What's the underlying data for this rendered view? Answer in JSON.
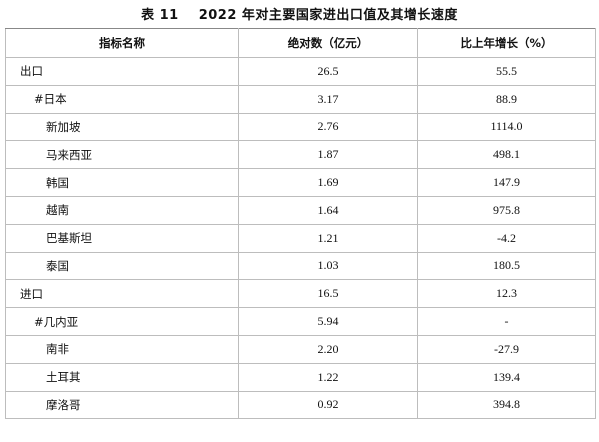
{
  "title": {
    "number": "表 11",
    "text": "2022 年对主要国家进出口值及其增长速度"
  },
  "table": {
    "headers": [
      "指标名称",
      "绝对数（亿元）",
      "比上年增长（%）"
    ],
    "rows": [
      {
        "name": "出口",
        "level": 0,
        "value": "26.5",
        "growth": "55.5"
      },
      {
        "name": "#日本",
        "level": 1,
        "value": "3.17",
        "growth": "88.9"
      },
      {
        "name": "新加坡",
        "level": 2,
        "value": "2.76",
        "growth": "1114.0"
      },
      {
        "name": "马来西亚",
        "level": 2,
        "value": "1.87",
        "growth": "498.1"
      },
      {
        "name": "韩国",
        "level": 2,
        "value": "1.69",
        "growth": "147.9"
      },
      {
        "name": "越南",
        "level": 2,
        "value": "1.64",
        "growth": "975.8"
      },
      {
        "name": "巴基斯坦",
        "level": 2,
        "value": "1.21",
        "growth": "-4.2"
      },
      {
        "name": "泰国",
        "level": 2,
        "value": "1.03",
        "growth": "180.5"
      },
      {
        "name": "进口",
        "level": 0,
        "value": "16.5",
        "growth": "12.3"
      },
      {
        "name": "#几内亚",
        "level": 1,
        "value": "5.94",
        "growth": "-"
      },
      {
        "name": "南非",
        "level": 2,
        "value": "2.20",
        "growth": "-27.9"
      },
      {
        "name": "土耳其",
        "level": 2,
        "value": "1.22",
        "growth": "139.4"
      },
      {
        "name": "摩洛哥",
        "level": 2,
        "value": "0.92",
        "growth": "394.8"
      }
    ]
  }
}
